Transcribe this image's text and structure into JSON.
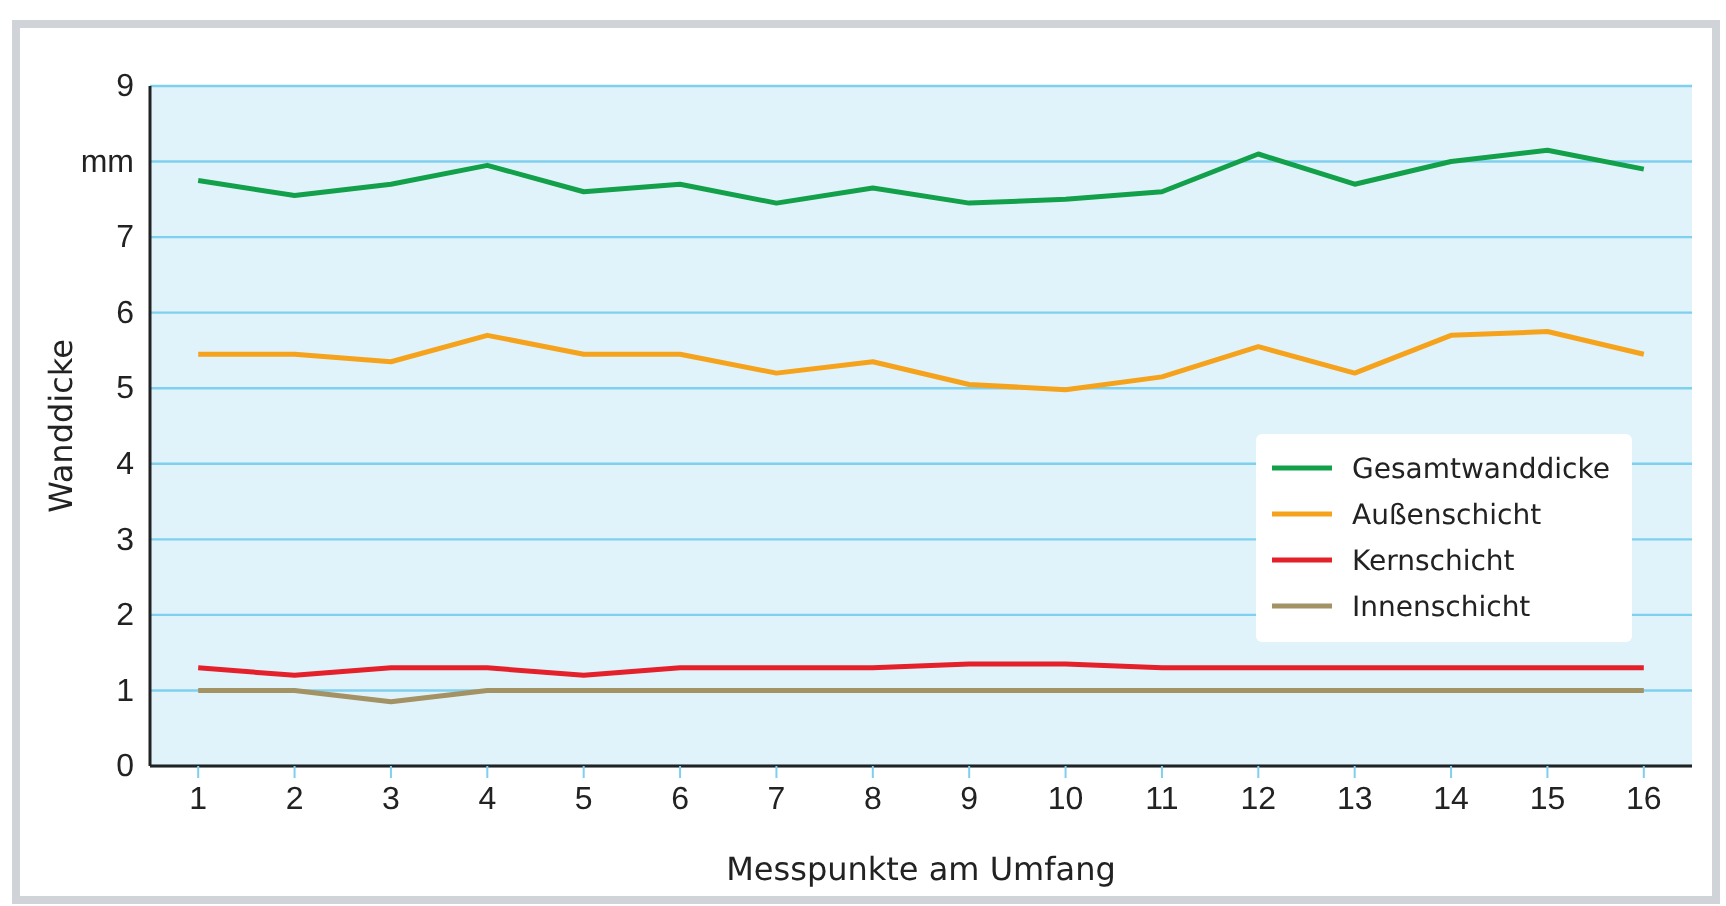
{
  "chart_data": {
    "type": "line",
    "xlabel": "Messpunkte am Umfang",
    "ylabel": "Wanddicke",
    "categories": [
      "1",
      "2",
      "3",
      "4",
      "5",
      "6",
      "7",
      "8",
      "9",
      "10",
      "11",
      "12",
      "13",
      "14",
      "15",
      "16"
    ],
    "ylim": [
      0,
      9
    ],
    "yticks": [
      0,
      1,
      2,
      3,
      4,
      5,
      6,
      7,
      {
        "value": 8,
        "label": "mm"
      },
      9
    ],
    "grid": "y",
    "legend": "right",
    "line_style": "solid",
    "marker": "none",
    "series": [
      {
        "name": "Gesamtwanddicke",
        "color": "#13a04a",
        "values": [
          7.75,
          7.55,
          7.7,
          7.95,
          7.6,
          7.7,
          7.45,
          7.65,
          7.45,
          7.5,
          7.6,
          8.1,
          7.7,
          8.0,
          8.15,
          7.9
        ]
      },
      {
        "name": "Außenschicht",
        "color": "#f5a31c",
        "values": [
          5.45,
          5.45,
          5.35,
          5.7,
          5.45,
          5.45,
          5.2,
          5.35,
          5.05,
          4.98,
          5.15,
          5.55,
          5.2,
          5.7,
          5.75,
          5.45
        ]
      },
      {
        "name": "Kernschicht",
        "color": "#e4202a",
        "values": [
          1.3,
          1.2,
          1.3,
          1.3,
          1.2,
          1.3,
          1.3,
          1.3,
          1.35,
          1.35,
          1.3,
          1.3,
          1.3,
          1.3,
          1.3,
          1.3
        ]
      },
      {
        "name": "Innenschicht",
        "color": "#a39264",
        "values": [
          1,
          1,
          0.85,
          1,
          1,
          1,
          1,
          1,
          1,
          1,
          1,
          1,
          1,
          1,
          1,
          1
        ]
      }
    ]
  }
}
